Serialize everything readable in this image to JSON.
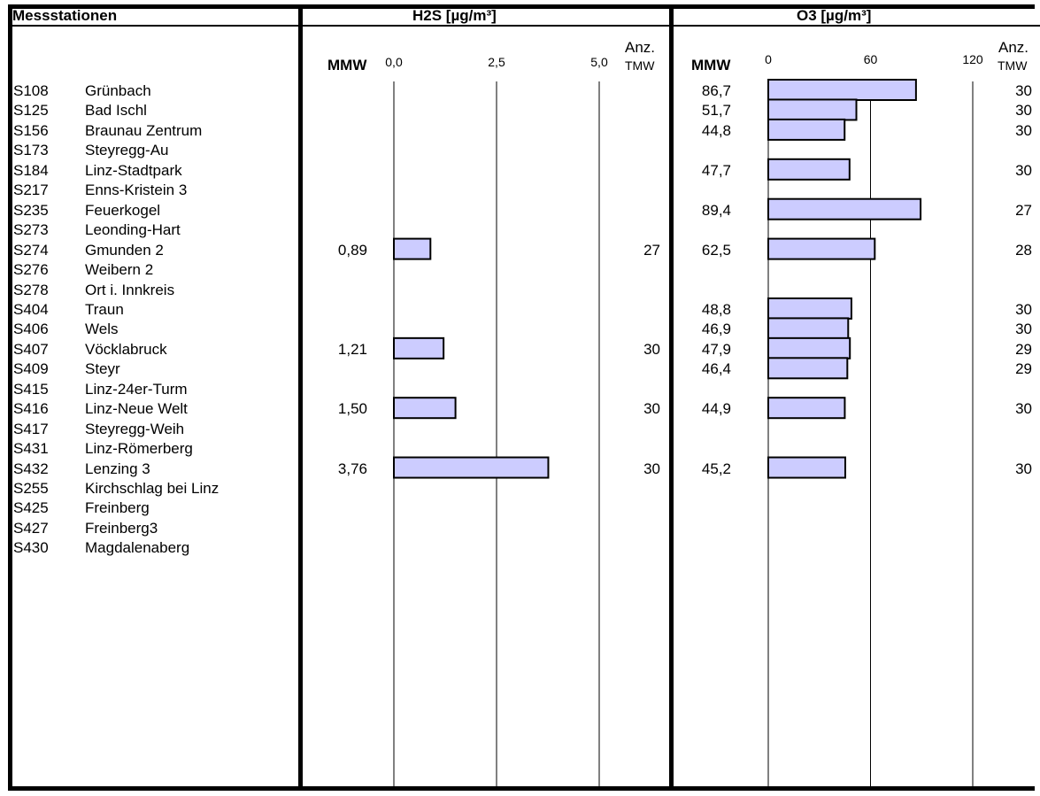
{
  "header": {
    "stations_title": "Messstationen",
    "mmw_label": "MMW",
    "count_label_line1": "Anz.",
    "count_label_line2": "TMW"
  },
  "stations": [
    {
      "code": "S108",
      "name": "Grünbach"
    },
    {
      "code": "S125",
      "name": "Bad Ischl"
    },
    {
      "code": "S156",
      "name": "Braunau Zentrum"
    },
    {
      "code": "S173",
      "name": "Steyregg-Au"
    },
    {
      "code": "S184",
      "name": "Linz-Stadtpark"
    },
    {
      "code": "S217",
      "name": "Enns-Kristein 3"
    },
    {
      "code": "S235",
      "name": "Feuerkogel"
    },
    {
      "code": "S273",
      "name": "Leonding-Hart"
    },
    {
      "code": "S274",
      "name": "Gmunden 2"
    },
    {
      "code": "S276",
      "name": "Weibern 2"
    },
    {
      "code": "S278",
      "name": "Ort i. Innkreis"
    },
    {
      "code": "S404",
      "name": "Traun"
    },
    {
      "code": "S406",
      "name": "Wels"
    },
    {
      "code": "S407",
      "name": "Vöcklabruck"
    },
    {
      "code": "S409",
      "name": "Steyr"
    },
    {
      "code": "S415",
      "name": "Linz-24er-Turm"
    },
    {
      "code": "S416",
      "name": "Linz-Neue Welt"
    },
    {
      "code": "S417",
      "name": "Steyregg-Weih"
    },
    {
      "code": "S431",
      "name": "Linz-Römerberg"
    },
    {
      "code": "S432",
      "name": "Lenzing 3"
    },
    {
      "code": "S255",
      "name": "Kirchschlag bei Linz"
    },
    {
      "code": "S425",
      "name": "Freinberg"
    },
    {
      "code": "S427",
      "name": "Freinberg3"
    },
    {
      "code": "S430",
      "name": "Magdalenaberg"
    }
  ],
  "colors": {
    "bar_fill": "#ccccff",
    "bar_stroke": "#000000",
    "grid": "#000000"
  },
  "chart_data": [
    {
      "type": "bar",
      "orientation": "horizontal",
      "title": "H2S [µg/m³]",
      "xlim": [
        0,
        5
      ],
      "ticks": [
        0,
        2.5,
        5
      ],
      "tick_labels": [
        "0,0",
        "2,5",
        "5,0"
      ],
      "grid": true,
      "categories": [
        "S108",
        "S125",
        "S156",
        "S173",
        "S184",
        "S217",
        "S235",
        "S273",
        "S274",
        "S276",
        "S278",
        "S404",
        "S406",
        "S407",
        "S409",
        "S415",
        "S416",
        "S417",
        "S431",
        "S432",
        "S255",
        "S425",
        "S427",
        "S430"
      ],
      "values": [
        null,
        null,
        null,
        null,
        null,
        null,
        null,
        null,
        0.89,
        null,
        null,
        null,
        null,
        1.21,
        null,
        null,
        1.5,
        null,
        null,
        3.76,
        null,
        null,
        null,
        null
      ],
      "value_labels": [
        "",
        "",
        "",
        "",
        "",
        "",
        "",
        "",
        "0,89",
        "",
        "",
        "",
        "",
        "1,21",
        "",
        "",
        "1,50",
        "",
        "",
        "3,76",
        "",
        "",
        "",
        ""
      ],
      "counts": [
        "",
        "",
        "",
        "",
        "",
        "",
        "",
        "",
        "27",
        "",
        "",
        "",
        "",
        "30",
        "",
        "",
        "30",
        "",
        "",
        "30",
        "",
        "",
        "",
        ""
      ]
    },
    {
      "type": "bar",
      "orientation": "horizontal",
      "title": "O3 [µg/m³]",
      "xlim": [
        0,
        120
      ],
      "ticks": [
        0,
        60,
        120
      ],
      "tick_labels": [
        "0",
        "60",
        "120"
      ],
      "grid": true,
      "categories": [
        "S108",
        "S125",
        "S156",
        "S173",
        "S184",
        "S217",
        "S235",
        "S273",
        "S274",
        "S276",
        "S278",
        "S404",
        "S406",
        "S407",
        "S409",
        "S415",
        "S416",
        "S417",
        "S431",
        "S432",
        "S255",
        "S425",
        "S427",
        "S430"
      ],
      "values": [
        86.7,
        51.7,
        44.8,
        null,
        47.7,
        null,
        89.4,
        null,
        62.5,
        null,
        null,
        48.8,
        46.9,
        47.9,
        46.4,
        null,
        44.9,
        null,
        null,
        45.2,
        null,
        null,
        null,
        null
      ],
      "value_labels": [
        "86,7",
        "51,7",
        "44,8",
        "",
        "47,7",
        "",
        "89,4",
        "",
        "62,5",
        "",
        "",
        "48,8",
        "46,9",
        "47,9",
        "46,4",
        "",
        "44,9",
        "",
        "",
        "45,2",
        "",
        "",
        "",
        ""
      ],
      "counts": [
        "30",
        "30",
        "30",
        "",
        "30",
        "",
        "27",
        "",
        "28",
        "",
        "",
        "30",
        "30",
        "29",
        "29",
        "",
        "30",
        "",
        "",
        "30",
        "",
        "",
        "",
        ""
      ]
    }
  ]
}
